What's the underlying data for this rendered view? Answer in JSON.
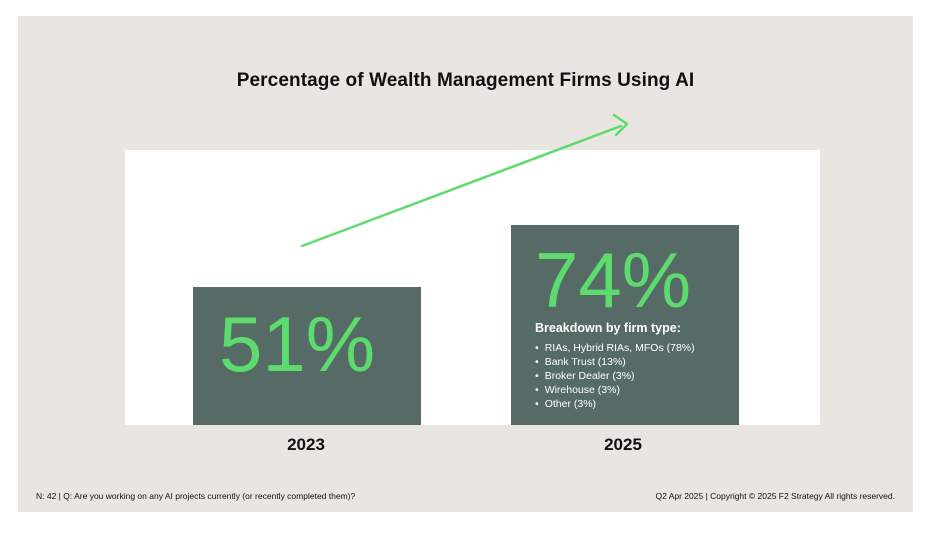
{
  "chart_data": {
    "type": "bar",
    "title": "Percentage of Wealth Management Firms Using AI",
    "categories": [
      "2023",
      "2025"
    ],
    "values": [
      51,
      74
    ],
    "value_labels": [
      "51%",
      "74%"
    ],
    "ylim": [
      0,
      100
    ],
    "annotation": {
      "heading": "Breakdown by firm type:",
      "items": [
        "RIAs, Hybrid RIAs, MFOs (78%)",
        "Bank Trust (13%)",
        "Broker Dealer (3%)",
        "Wirehouse (3%)",
        "Other (3%)"
      ]
    },
    "trend_arrow": true,
    "colors": {
      "bar": "#566b66",
      "value_text": "#5ddb6e",
      "arrow": "#5ddb6e"
    }
  },
  "footer": {
    "left": "N: 42  |  Q: Are you working on any AI projects currently (or recently completed them)?",
    "right": "Q2 Apr 2025  |  Copyright © 2025 F2 Strategy All rights reserved."
  }
}
